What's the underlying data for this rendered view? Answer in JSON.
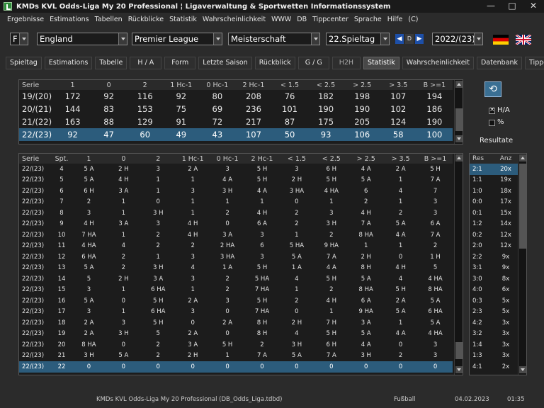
{
  "window": {
    "title": "KMDs KVL Odds-Liga My 20 Professional  ¦  Ligaverwaltung & Sportwetten Informationssystem"
  },
  "menu": [
    "Ergebnisse",
    "Estimations",
    "Tabellen",
    "Rückblicke",
    "Statistik",
    "Wahrscheinlichkeit",
    "WWW",
    "DB",
    "Tippcenter",
    "Sprache",
    "Hilfe",
    "(C)"
  ],
  "toolbar": {
    "sport_short": "F",
    "country": "England",
    "league": "Premier League",
    "competition": "Meisterschaft",
    "matchday": "22.Spieltag",
    "d_label": "D",
    "season": "2022/(23)",
    "flags": [
      "german-flag",
      "uk-flag"
    ]
  },
  "tabs": [
    "Spieltag",
    "Estimations",
    "Tabelle",
    "H / A",
    "Form",
    "Letzte Saison",
    "Rückblick",
    "G / G",
    "H2H",
    "Statistik",
    "Wahrscheinlichkeit",
    "Datenbank",
    "Tippcenter"
  ],
  "active_tab": "Statistik",
  "top_table": {
    "headers": [
      "Serie",
      "1",
      "0",
      "2",
      "1 Hc-1",
      "0 Hc-1",
      "2 Hc-1",
      "< 1.5",
      "< 2.5",
      "> 2.5",
      "> 3.5",
      "B >=1"
    ],
    "rows": [
      [
        "19/(20)",
        "172",
        "92",
        "116",
        "92",
        "80",
        "208",
        "76",
        "182",
        "198",
        "107",
        "194"
      ],
      [
        "20/(21)",
        "144",
        "83",
        "153",
        "75",
        "69",
        "236",
        "101",
        "190",
        "190",
        "102",
        "186"
      ],
      [
        "21/(22)",
        "163",
        "88",
        "129",
        "91",
        "72",
        "217",
        "87",
        "175",
        "205",
        "124",
        "190"
      ],
      [
        "22/(23)",
        "92",
        "47",
        "60",
        "49",
        "43",
        "107",
        "50",
        "93",
        "106",
        "58",
        "100"
      ]
    ],
    "selected_row": 3
  },
  "side": {
    "ha_label": "H/A",
    "ha_checked": true,
    "pct_label": "%",
    "pct_checked": false,
    "results_label": "Resultate"
  },
  "bottom_table": {
    "headers": [
      "Serie",
      "Spt.",
      "1",
      "0",
      "2",
      "1 Hc-1",
      "0 Hc-1",
      "2 Hc-1",
      "< 1.5",
      "< 2.5",
      "> 2.5",
      "> 3.5",
      "B >=1"
    ],
    "rows": [
      [
        "22/(23)",
        "4",
        "5 A",
        "2 H",
        "3",
        "2 A",
        "3",
        "5 H",
        "3",
        "6 H",
        "4 A",
        "2 A",
        "5 H"
      ],
      [
        "22/(23)",
        "5",
        "5 A",
        "4 H",
        "1",
        "1",
        "4 A",
        "5 H",
        "2 H",
        "5 H",
        "5 A",
        "1",
        "7 A"
      ],
      [
        "22/(23)",
        "6",
        "6 H",
        "3 A",
        "1",
        "3",
        "3 H",
        "4 A",
        "3 HA",
        "4 HA",
        "6",
        "4",
        "7"
      ],
      [
        "22/(23)",
        "7",
        "2",
        "1",
        "0",
        "1",
        "1",
        "1",
        "0",
        "1",
        "2",
        "1",
        "3"
      ],
      [
        "22/(23)",
        "8",
        "3",
        "1",
        "3 H",
        "1",
        "2",
        "4 H",
        "2",
        "3",
        "4 H",
        "2",
        "3"
      ],
      [
        "22/(23)",
        "9",
        "4 H",
        "3 A",
        "3",
        "4 H",
        "0",
        "6 A",
        "2",
        "3 H",
        "7 A",
        "5 A",
        "6 A"
      ],
      [
        "22/(23)",
        "10",
        "7 HA",
        "1",
        "2",
        "4 H",
        "3 A",
        "3",
        "1",
        "2",
        "8 HA",
        "4 A",
        "7 A"
      ],
      [
        "22/(23)",
        "11",
        "4 HA",
        "4",
        "2",
        "2",
        "2 HA",
        "6",
        "5 HA",
        "9 HA",
        "1",
        "1",
        "2"
      ],
      [
        "22/(23)",
        "12",
        "6 HA",
        "2",
        "1",
        "3",
        "3 HA",
        "3",
        "5 A",
        "7 A",
        "2 H",
        "0",
        "1 H"
      ],
      [
        "22/(23)",
        "13",
        "5 A",
        "2",
        "3 H",
        "4",
        "1 A",
        "5 H",
        "1 A",
        "4 A",
        "8 H",
        "4 H",
        "5"
      ],
      [
        "22/(23)",
        "14",
        "5",
        "2 H",
        "3 A",
        "3",
        "2",
        "5 HA",
        "4",
        "5 H",
        "5 A",
        "4",
        "4 HA"
      ],
      [
        "22/(23)",
        "15",
        "3",
        "1",
        "6 HA",
        "1",
        "2",
        "7 HA",
        "1",
        "2",
        "8 HA",
        "5 H",
        "8 HA"
      ],
      [
        "22/(23)",
        "16",
        "5 A",
        "0",
        "5 H",
        "2 A",
        "3",
        "5 H",
        "2",
        "4 H",
        "6 A",
        "2 A",
        "5 A"
      ],
      [
        "22/(23)",
        "17",
        "3",
        "1",
        "6 HA",
        "3",
        "0",
        "7 HA",
        "0",
        "1",
        "9 HA",
        "5 A",
        "6 HA"
      ],
      [
        "22/(23)",
        "18",
        "2 A",
        "3",
        "5 H",
        "0",
        "2 A",
        "8 H",
        "2 H",
        "7 H",
        "3 A",
        "1",
        "5 A"
      ],
      [
        "22/(23)",
        "19",
        "2 A",
        "3 H",
        "5",
        "2 A",
        "0",
        "8 H",
        "4",
        "5 H",
        "5 A",
        "4 A",
        "4 HA"
      ],
      [
        "22/(23)",
        "20",
        "8 HA",
        "0",
        "2",
        "3 A",
        "5 H",
        "2",
        "3 H",
        "6 H",
        "4 A",
        "0",
        "3"
      ],
      [
        "22/(23)",
        "21",
        "3 H",
        "5 A",
        "2",
        "2 H",
        "1",
        "7 A",
        "5 A",
        "7 A",
        "3 H",
        "2",
        "3"
      ],
      [
        "22/(23)",
        "22",
        "0",
        "0",
        "0",
        "0",
        "0",
        "0",
        "0",
        "0",
        "0",
        "0",
        "0"
      ]
    ],
    "selected_row": 18
  },
  "results_table": {
    "headers": [
      "Res",
      "Anz"
    ],
    "rows": [
      [
        "2:1",
        "20x"
      ],
      [
        "1:1",
        "19x"
      ],
      [
        "1:0",
        "18x"
      ],
      [
        "0:0",
        "17x"
      ],
      [
        "0:1",
        "15x"
      ],
      [
        "1:2",
        "14x"
      ],
      [
        "0:2",
        "12x"
      ],
      [
        "2:0",
        "12x"
      ],
      [
        "2:2",
        "9x"
      ],
      [
        "3:1",
        "9x"
      ],
      [
        "3:0",
        "8x"
      ],
      [
        "4:0",
        "6x"
      ],
      [
        "0:3",
        "5x"
      ],
      [
        "2:3",
        "5x"
      ],
      [
        "4:2",
        "3x"
      ],
      [
        "3:2",
        "3x"
      ],
      [
        "1:4",
        "3x"
      ],
      [
        "1:3",
        "3x"
      ],
      [
        "4:1",
        "2x"
      ]
    ],
    "selected_row": 0
  },
  "status": {
    "app": "KMDs KVL Odds-Liga My 20 Professional  (DB_Odds_Liga.tdbd)",
    "sport": "Fußball",
    "date": "04.02.2023",
    "time": "01:35"
  }
}
